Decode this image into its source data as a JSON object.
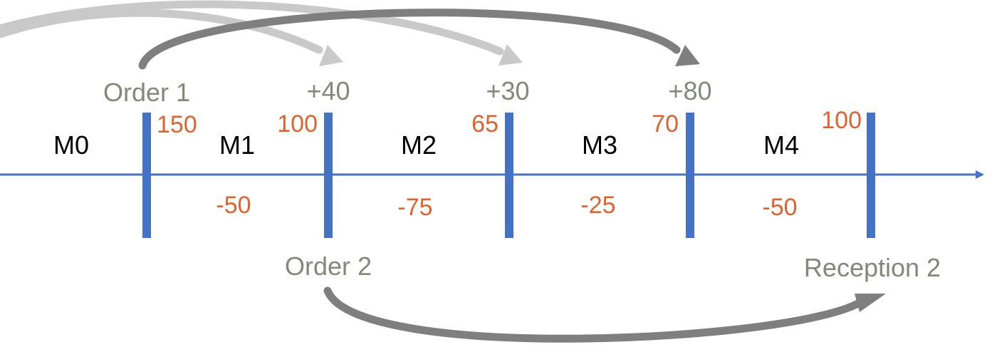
{
  "colors": {
    "axis": "#4472C4",
    "marker": "#4472C4",
    "orange": "#E0622E",
    "gray_text": "#84887A",
    "arrow_dark": "#7F7F7F",
    "arrow_light": "#C9C9C9"
  },
  "periods": [
    {
      "name": "M0",
      "change": ""
    },
    {
      "name": "M1",
      "change": "-50"
    },
    {
      "name": "M2",
      "change": "-75"
    },
    {
      "name": "M3",
      "change": "-25"
    },
    {
      "name": "M4",
      "change": "-50"
    }
  ],
  "boundaries": [
    {
      "stock": "150",
      "event_above": "Order 1",
      "event_below": ""
    },
    {
      "stock": "100",
      "event_above": "+40",
      "event_below": "Order 2"
    },
    {
      "stock": "65",
      "event_above": "+30",
      "event_below": ""
    },
    {
      "stock": "70",
      "event_above": "+80",
      "event_below": ""
    },
    {
      "stock": "100",
      "event_above": "",
      "event_below": "Reception 2"
    }
  ],
  "flows": [
    {
      "from": "off-left",
      "to": "+40",
      "style": "light"
    },
    {
      "from": "off-left",
      "to": "+30",
      "style": "light"
    },
    {
      "from": "Order 1",
      "to": "+80",
      "style": "dark"
    },
    {
      "from": "Order 2",
      "to": "Reception 2",
      "style": "dark"
    }
  ]
}
